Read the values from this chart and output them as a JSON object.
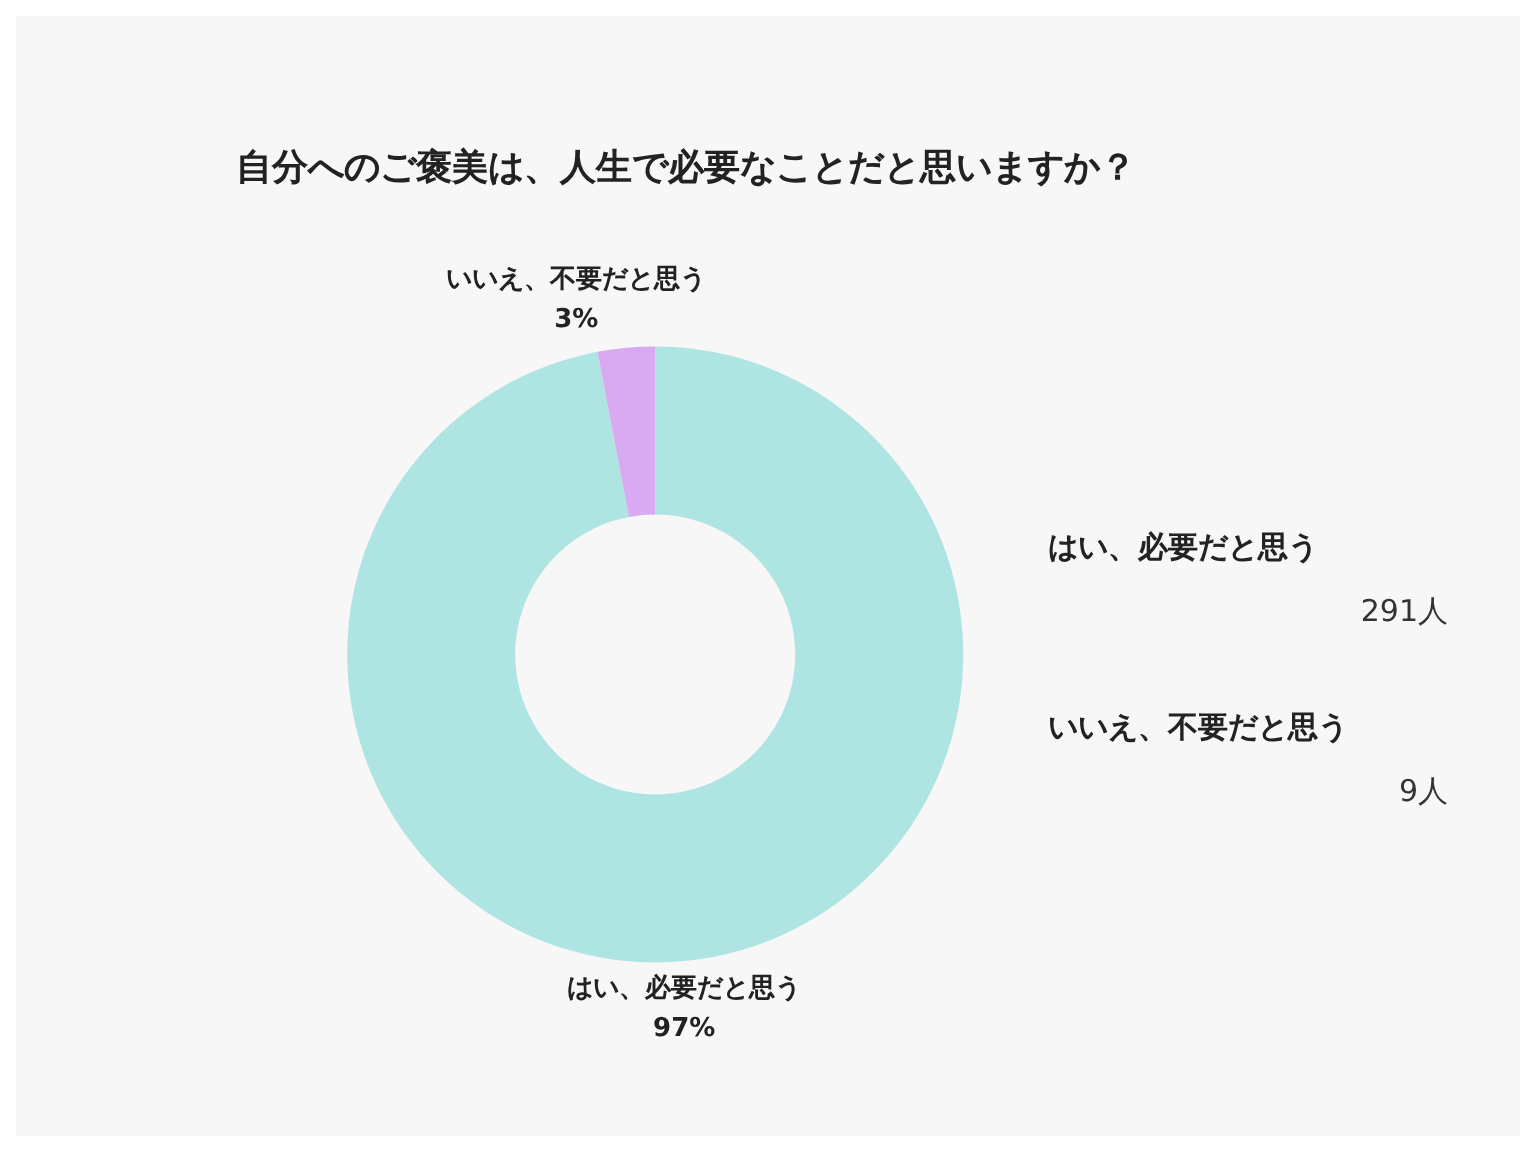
{
  "chart_data": {
    "type": "donut",
    "title": "自分へのご褒美は、人生で必要なことだと思いますか？",
    "categories": [
      "はい、必要だと思う",
      "いいえ、不要だと思う"
    ],
    "values": [
      97,
      3
    ],
    "colors": [
      "#aee4e2",
      "#d9aaf2"
    ],
    "value_labels": [
      "97%",
      "3%"
    ],
    "annotations": [
      "291人",
      "9人"
    ]
  }
}
